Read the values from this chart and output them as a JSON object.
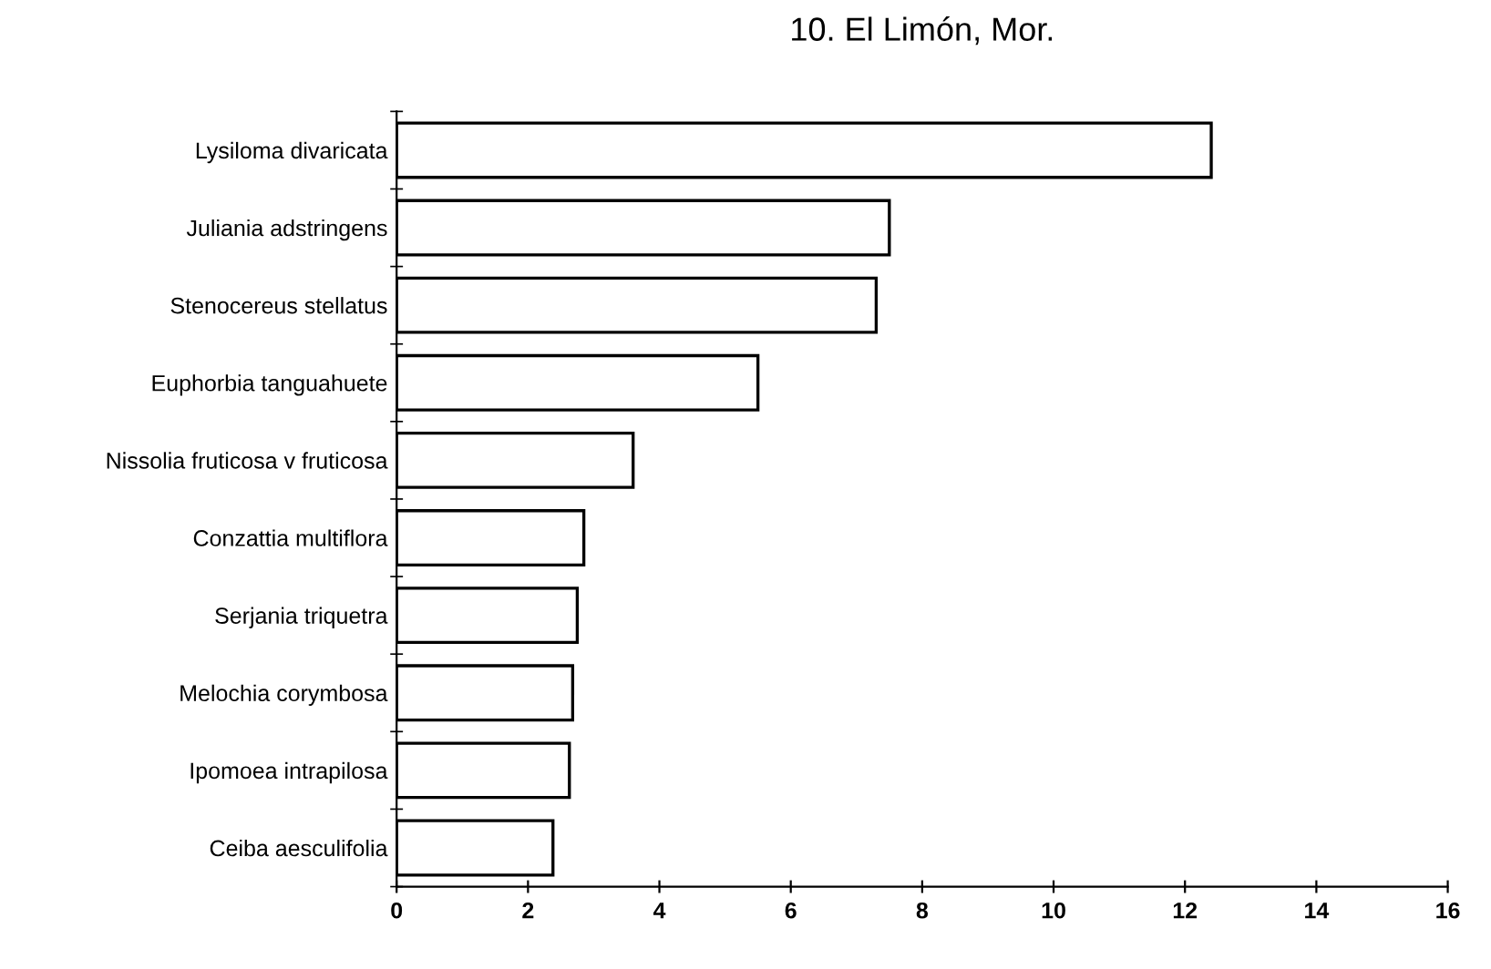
{
  "chart_data": {
    "type": "bar",
    "orientation": "horizontal",
    "title": "10. El Limón, Mor.",
    "categories": [
      "Lysiloma divaricata",
      "Juliania adstringens",
      "Stenocereus stellatus",
      "Euphorbia tanguahuete",
      "Nissolia fruticosa v fruticosa",
      "Conzattia multiflora",
      "Serjania triquetra",
      "Melochia corymbosa",
      "Ipomoea intrapilosa",
      "Ceiba aesculifolia"
    ],
    "values": [
      12.4,
      7.5,
      7.3,
      5.5,
      3.6,
      2.85,
      2.75,
      2.68,
      2.63,
      2.38
    ],
    "color": "#ffffff",
    "xlim": [
      0,
      16
    ],
    "xticks": [
      0,
      2,
      4,
      6,
      8,
      10,
      12,
      14,
      16
    ],
    "grid": false
  }
}
